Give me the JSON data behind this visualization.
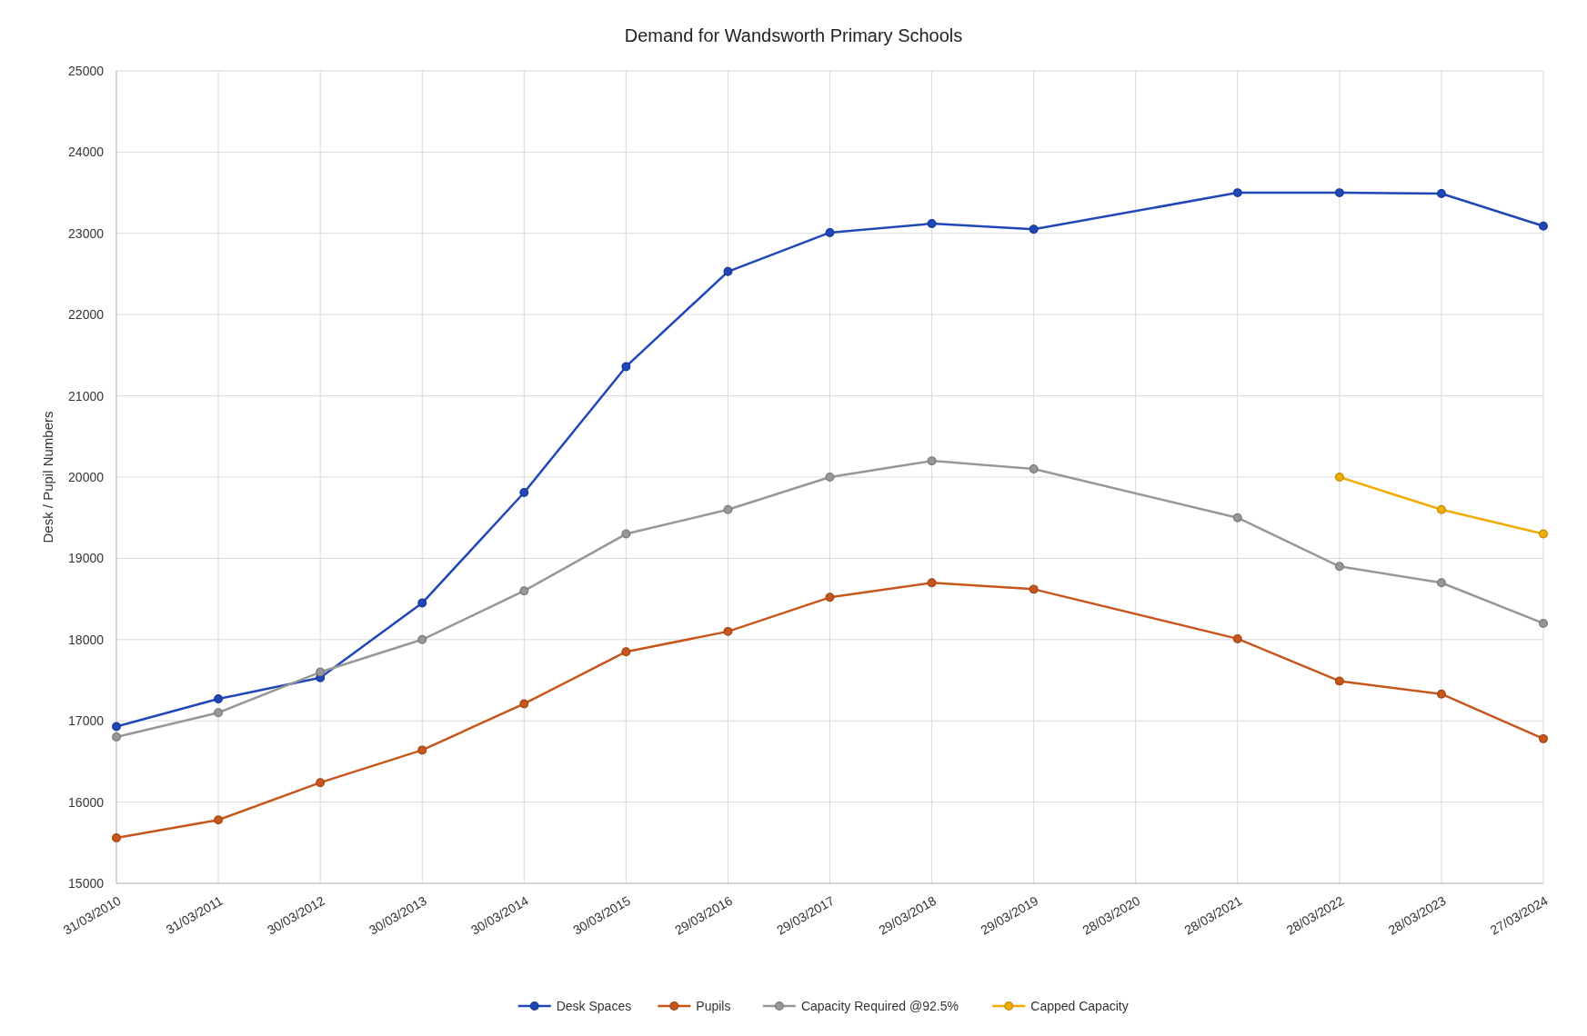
{
  "chart_data": {
    "type": "line",
    "title": "Demand for Wandsworth Primary Schools",
    "ylabel": "Desk / Pupil Numbers",
    "categories": [
      "31/03/2010",
      "31/03/2011",
      "30/03/2012",
      "30/03/2013",
      "30/03/2014",
      "30/03/2015",
      "29/03/2016",
      "29/03/2017",
      "29/03/2018",
      "29/03/2019",
      "28/03/2020",
      "28/03/2021",
      "28/03/2022",
      "28/03/2023",
      "27/03/2024"
    ],
    "series": [
      {
        "name": "Desk Spaces",
        "color": "#1f47b8",
        "values": [
          16930,
          17270,
          17530,
          18450,
          19810,
          21360,
          22530,
          23010,
          23120,
          23050,
          null,
          23500,
          23500,
          23490,
          23090
        ]
      },
      {
        "name": "Pupils",
        "color": "#c8561c",
        "values": [
          15560,
          15780,
          16240,
          16640,
          17210,
          17850,
          18100,
          18520,
          18700,
          18620,
          null,
          18010,
          17490,
          17330,
          16780
        ]
      },
      {
        "name": "Capacity Required @92.5%",
        "color": "#979797",
        "values": [
          16800,
          17100,
          17600,
          18000,
          18600,
          19300,
          19600,
          20000,
          20200,
          20100,
          null,
          19500,
          18900,
          18700,
          18200
        ]
      },
      {
        "name": "Capped Capacity",
        "color": "#f0ad00",
        "values": [
          null,
          null,
          null,
          null,
          null,
          null,
          null,
          null,
          null,
          null,
          null,
          null,
          20000,
          19600,
          19300
        ]
      }
    ],
    "ylim": [
      15000,
      25000
    ],
    "yticks": [
      15000,
      16000,
      17000,
      18000,
      19000,
      20000,
      21000,
      22000,
      23000,
      24000,
      25000
    ],
    "grid": true,
    "legend": "bottom",
    "marker": "circle",
    "line_style": "solid"
  }
}
